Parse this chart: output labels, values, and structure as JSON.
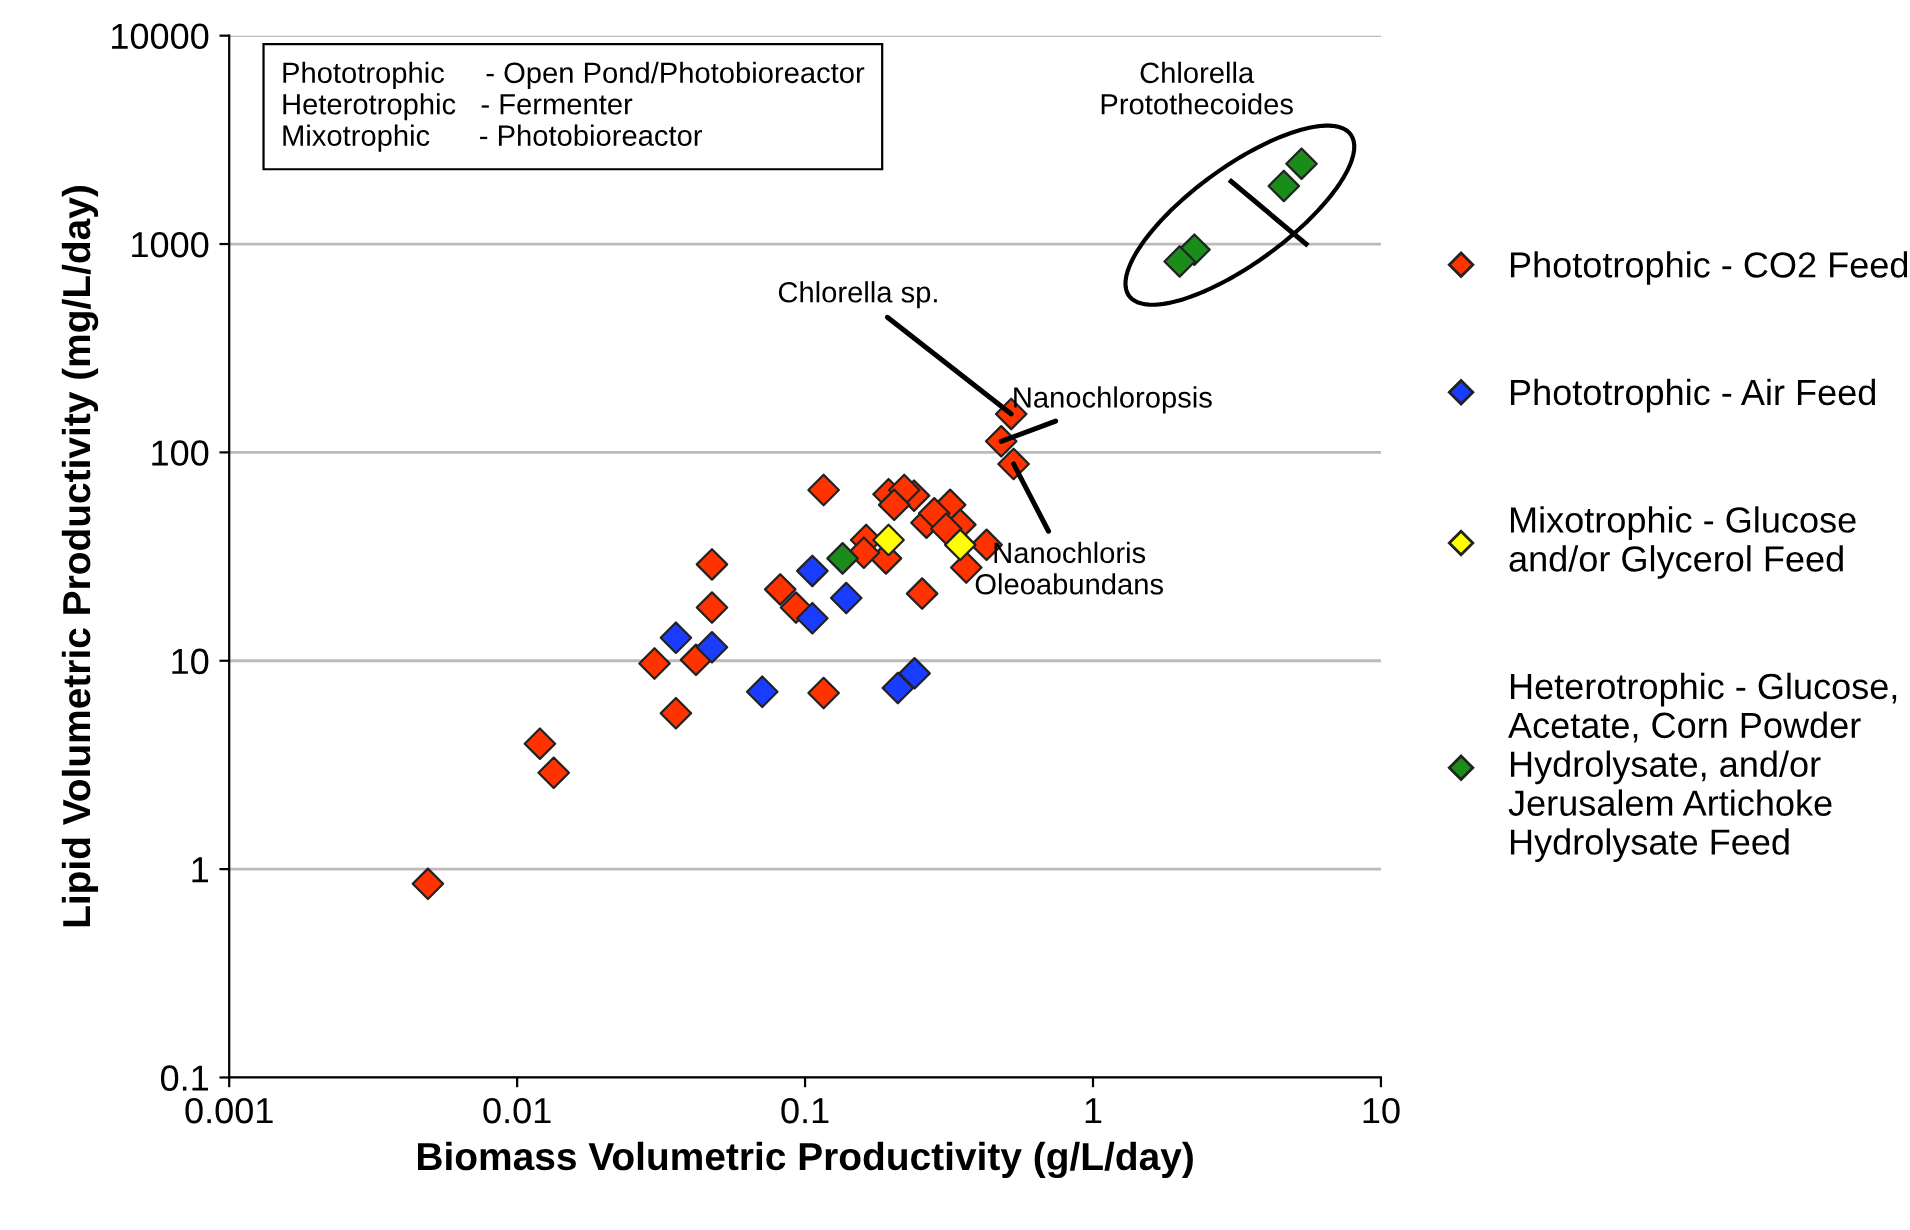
{
  "chart_data": {
    "type": "scatter",
    "xlabel": "Biomass Volumetric Productivity (g/L/day)",
    "ylabel": "Lipid Volumetric Productivity (mg/L/day)",
    "log": "xy",
    "xlim": [
      0.001,
      10
    ],
    "ylim": [
      0.1,
      10000
    ],
    "xticks": [
      0.001,
      0.01,
      0.1,
      1,
      10
    ],
    "yticks": [
      0.1,
      1,
      10,
      100,
      1000,
      10000
    ],
    "grid": "y",
    "legend": "right",
    "marker": "diamond",
    "series": [
      {
        "name": "Phototrophic - CO2 Feed",
        "color": "#ff3300",
        "x": [
          0.0049,
          0.012,
          0.0134,
          0.03,
          0.0356,
          0.0418,
          0.0475,
          0.0475,
          0.082,
          0.093,
          0.116,
          0.116,
          0.255,
          0.163,
          0.195,
          0.239,
          0.221,
          0.204,
          0.264,
          0.319,
          0.346,
          0.427,
          0.363,
          0.191,
          0.16,
          0.281,
          0.309,
          0.52,
          0.48,
          0.53
        ],
        "values": [
          0.85,
          4.0,
          2.9,
          9.7,
          5.6,
          10.1,
          18,
          29,
          22,
          18,
          66,
          7.0,
          21,
          38,
          63,
          62,
          66,
          56,
          46,
          56,
          45,
          36,
          28,
          31,
          33,
          51,
          43,
          153,
          113,
          88
        ]
      },
      {
        "name": "Phototrophic - Air Feed",
        "color": "#1a3cff",
        "x": [
          0.0356,
          0.0475,
          0.071,
          0.106,
          0.106,
          0.139,
          0.21,
          0.24
        ],
        "values": [
          12.9,
          11.6,
          7.1,
          27,
          16,
          20,
          7.4,
          8.7
        ]
      },
      {
        "name": "Mixotrophic - Glucose\nand/or Glycerol Feed",
        "color": "#ffff00",
        "x": [
          0.195,
          0.346
        ],
        "values": [
          38,
          36
        ]
      },
      {
        "name": "Heterotrophic - Glucose,\nAcetate, Corn Powder\nHydrolysate, and/or\nJerusalem Artichoke\nHydrolysate Feed",
        "color": "#1a8c1a",
        "x": [
          0.135,
          5.3,
          4.6,
          2.25,
          2.0
        ],
        "values": [
          31,
          2430,
          1900,
          940,
          825
        ]
      }
    ],
    "annotations": [
      "Phototrophic     - Open Pond/Photobioreactor\nHeterotrophic   - Fermenter\nMixotrophic      - Photobioreactor",
      {
        "text": "Chlorella sp.",
        "x": 0.52,
        "y": 153
      },
      {
        "text": "Nanochloropsis",
        "x": 0.48,
        "y": 113
      },
      {
        "text": "Nanochloris\nOleoabundans",
        "x": 0.53,
        "y": 88
      },
      "Chlorella\nProtothecoides"
    ]
  }
}
